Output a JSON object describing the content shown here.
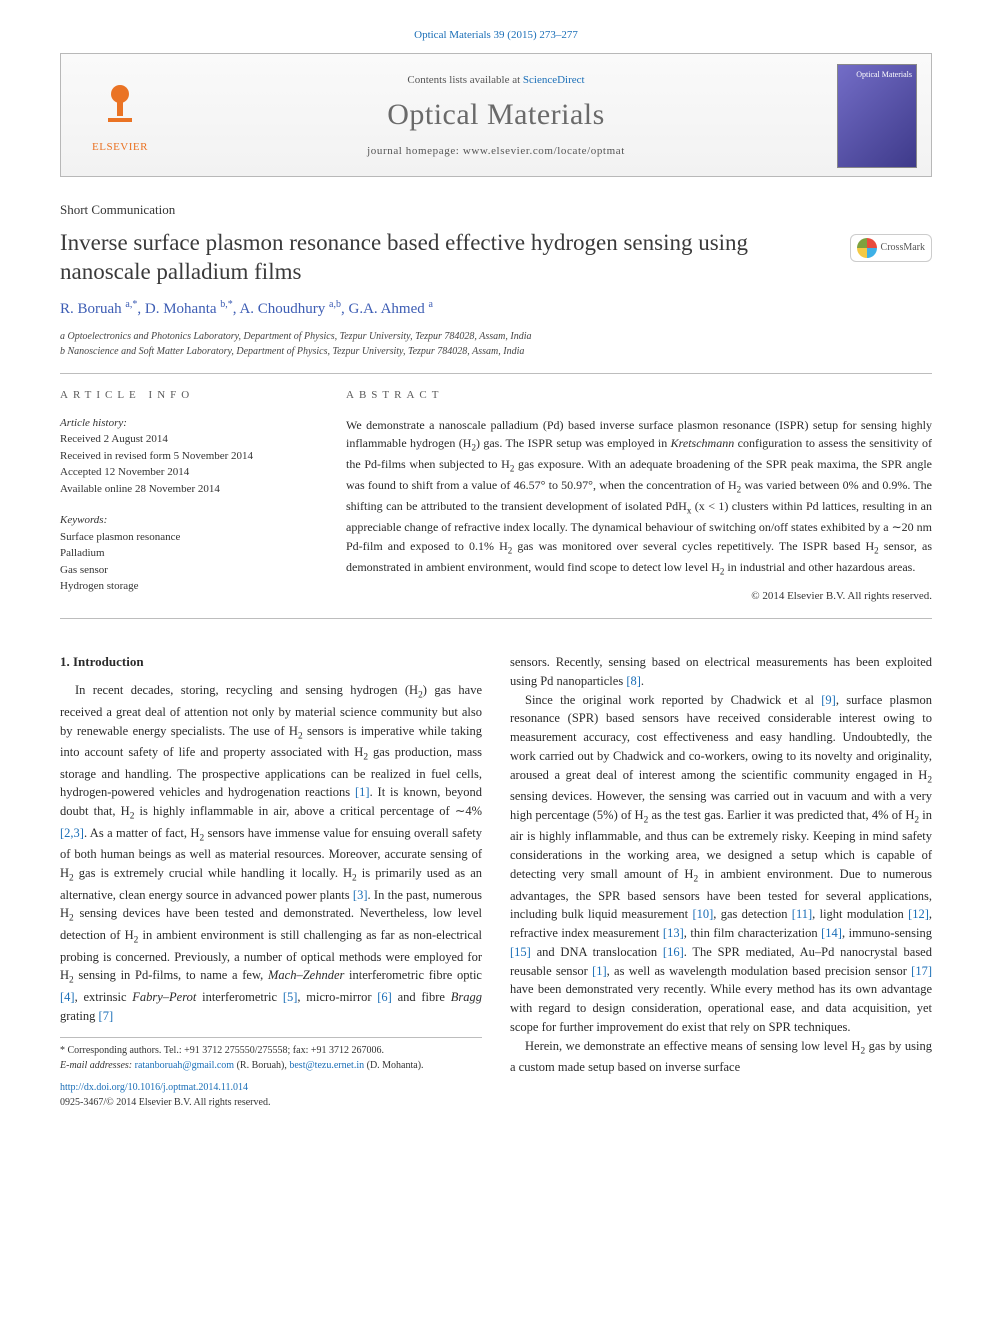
{
  "header": {
    "citation_prefix": "Optical Materials 39 (2015) 273–277",
    "contents_line_prefix": "Contents lists available at ",
    "contents_link": "ScienceDirect",
    "journal_name": "Optical Materials",
    "homepage_prefix": "journal homepage: ",
    "homepage_url": "www.elsevier.com/locate/optmat",
    "publisher_logo_text": "ELSEVIER",
    "cover_label": "Optical Materials"
  },
  "article": {
    "type": "Short Communication",
    "title": "Inverse surface plasmon resonance based effective hydrogen sensing using nanoscale palladium films",
    "crossmark_label": "CrossMark",
    "authors_html": "R. Boruah <sup>a,*</sup>, D. Mohanta <sup>b,*</sup>, A. Choudhury <sup>a,b</sup>, G.A. Ahmed <sup>a</sup>",
    "affiliations": [
      "a Optoelectronics and Photonics Laboratory, Department of Physics, Tezpur University, Tezpur 784028, Assam, India",
      "b Nanoscience and Soft Matter Laboratory, Department of Physics, Tezpur University, Tezpur 784028, Assam, India"
    ]
  },
  "info": {
    "section_label": "ARTICLE INFO",
    "history_label": "Article history:",
    "history": [
      "Received 2 August 2014",
      "Received in revised form 5 November 2014",
      "Accepted 12 November 2014",
      "Available online 28 November 2014"
    ],
    "keywords_label": "Keywords:",
    "keywords": [
      "Surface plasmon resonance",
      "Palladium",
      "Gas sensor",
      "Hydrogen storage"
    ]
  },
  "abstract": {
    "section_label": "ABSTRACT",
    "text": "We demonstrate a nanoscale palladium (Pd) based inverse surface plasmon resonance (ISPR) setup for sensing highly inflammable hydrogen (H₂) gas. The ISPR setup was employed in Kretschmann configuration to assess the sensitivity of the Pd-films when subjected to H₂ gas exposure. With an adequate broadening of the SPR peak maxima, the SPR angle was found to shift from a value of 46.57° to 50.97°, when the concentration of H₂ was varied between 0% and 0.9%. The shifting can be attributed to the transient development of isolated PdHₓ (x < 1) clusters within Pd lattices, resulting in an appreciable change of refractive index locally. The dynamical behaviour of switching on/off states exhibited by a ∼20 nm Pd-film and exposed to 0.1% H₂ gas was monitored over several cycles repetitively. The ISPR based H₂ sensor, as demonstrated in ambient environment, would find scope to detect low level H₂ in industrial and other hazardous areas.",
    "copyright": "© 2014 Elsevier B.V. All rights reserved."
  },
  "body": {
    "section_heading": "1. Introduction",
    "col1_p1": "In recent decades, storing, recycling and sensing hydrogen (H₂) gas have received a great deal of attention not only by material science community but also by renewable energy specialists. The use of H₂ sensors is imperative while taking into account safety of life and property associated with H₂ gas production, mass storage and handling. The prospective applications can be realized in fuel cells, hydrogen-powered vehicles and hydrogenation reactions [1]. It is known, beyond doubt that, H₂ is highly inflammable in air, above a critical percentage of ∼4% [2,3]. As a matter of fact, H₂ sensors have immense value for ensuing overall safety of both human beings as well as material resources. Moreover, accurate sensing of H₂ gas is extremely crucial while handling it locally. H₂ is primarily used as an alternative, clean energy source in advanced power plants [3]. In the past, numerous H₂ sensing devices have been tested and demonstrated. Nevertheless, low level detection of H₂ in ambient environment is still challenging as far as non-electrical probing is concerned. Previously, a number of optical methods were employed for H₂ sensing in Pd-films, to name a few, Mach–Zehnder interferometric fibre optic [4], extrinsic Fabry–Perot interferometric [5], micro-mirror [6] and fibre Bragg grating [7]",
    "col2_p1": "sensors. Recently, sensing based on electrical measurements has been exploited using Pd nanoparticles [8].",
    "col2_p2": "Since the original work reported by Chadwick et al [9], surface plasmon resonance (SPR) based sensors have received considerable interest owing to measurement accuracy, cost effectiveness and easy handling. Undoubtedly, the work carried out by Chadwick and co-workers, owing to its novelty and originality, aroused a great deal of interest among the scientific community engaged in H₂ sensing devices. However, the sensing was carried out in vacuum and with a very high percentage (5%) of H₂ as the test gas. Earlier it was predicted that, 4% of H₂ in air is highly inflammable, and thus can be extremely risky. Keeping in mind safety considerations in the working area, we designed a setup which is capable of detecting very small amount of H₂ in ambient environment. Due to numerous advantages, the SPR based sensors have been tested for several applications, including bulk liquid measurement [10], gas detection [11], light modulation [12], refractive index measurement [13], thin film characterization [14], immuno-sensing [15] and DNA translocation [16]. The SPR mediated, Au–Pd nanocrystal based reusable sensor [1], as well as wavelength modulation based precision sensor [17] have been demonstrated very recently. While every method has its own advantage with regard to design consideration, operational ease, and data acquisition, yet scope for further improvement do exist that rely on SPR techniques.",
    "col2_p3": "Herein, we demonstrate an effective means of sensing low level H₂ gas by using a custom made setup based on inverse surface"
  },
  "footnotes": {
    "corr": "* Corresponding authors. Tel.: +91 3712 275550/275558; fax: +91 3712 267006.",
    "email_label": "E-mail addresses:",
    "email1": "ratanboruah@gmail.com",
    "email1_name": "(R. Boruah),",
    "email2": "best@tezu.ernet.in",
    "email2_name": "(D. Mohanta)."
  },
  "doi": {
    "url": "http://dx.doi.org/10.1016/j.optmat.2014.11.014",
    "issn_cpr": "0925-3467/© 2014 Elsevier B.V. All rights reserved."
  },
  "refs": {
    "r1": "[1]",
    "r23": "[2,3]",
    "r3": "[3]",
    "r4": "[4]",
    "r5": "[5]",
    "r6": "[6]",
    "r7": "[7]",
    "r8": "[8]",
    "r9": "[9]",
    "r10": "[10]",
    "r11": "[11]",
    "r12": "[12]",
    "r13": "[13]",
    "r14": "[14]",
    "r15": "[15]",
    "r16": "[16]",
    "r17": "[17]"
  },
  "colors": {
    "link": "#1a6eb7",
    "elsevier_orange": "#ea7324",
    "author_blue": "#3d5db4",
    "rule_gray": "#bdbdbd",
    "cover_grad_a": "#736dc7",
    "cover_grad_b": "#3e3a8a"
  },
  "typography": {
    "body_pt": 12.5,
    "title_pt": 23,
    "journal_pt": 30,
    "authors_pt": 15,
    "small_pt": 11,
    "footnote_pt": 10
  }
}
